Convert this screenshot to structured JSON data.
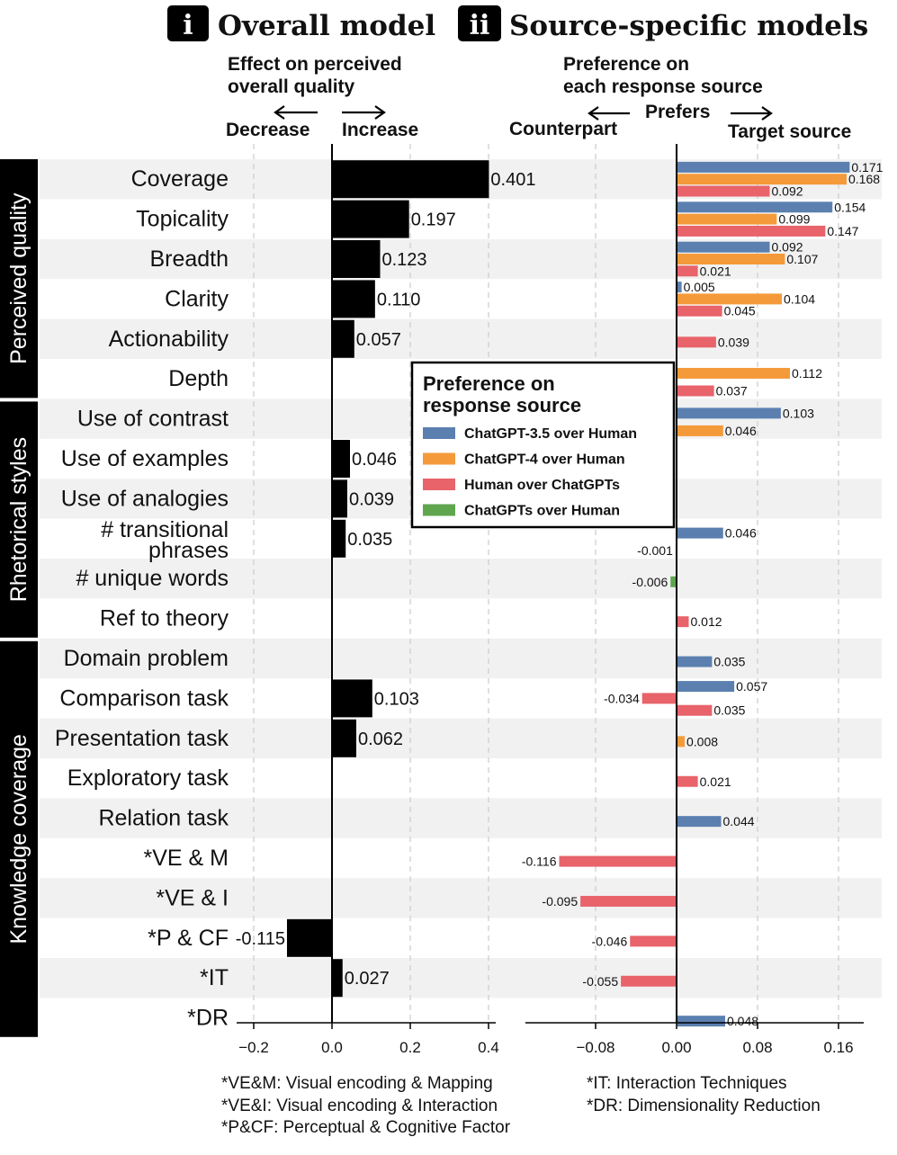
{
  "header": {
    "badge_i": "i",
    "title_i": "Overall model",
    "badge_ii": "ii",
    "title_ii": "Source-specific models",
    "left_sub_1": "Effect on perceived",
    "left_sub_2": "overall quality",
    "left_decrease": "Decrease",
    "left_increase": "Increase",
    "right_sub_1": "Preference on",
    "right_sub_2": "each response source",
    "right_prefers": "Prefers",
    "right_counterpart": "Counterpart",
    "right_target": "Target source"
  },
  "groups": [
    {
      "label": "Perceived quality",
      "start": 0,
      "end": 5
    },
    {
      "label": "Rhetorical styles",
      "start": 6,
      "end": 11
    },
    {
      "label": "Knowledge coverage",
      "start": 12,
      "end": 21
    }
  ],
  "categories": [
    {
      "lines": [
        "Coverage"
      ]
    },
    {
      "lines": [
        "Topicality"
      ]
    },
    {
      "lines": [
        "Breadth"
      ]
    },
    {
      "lines": [
        "Clarity"
      ]
    },
    {
      "lines": [
        "Actionability"
      ]
    },
    {
      "lines": [
        "Depth"
      ]
    },
    {
      "lines": [
        "Use of contrast"
      ]
    },
    {
      "lines": [
        "Use of examples"
      ]
    },
    {
      "lines": [
        "Use of analogies"
      ]
    },
    {
      "lines": [
        "# transitional",
        "phrases"
      ]
    },
    {
      "lines": [
        "# unique words"
      ]
    },
    {
      "lines": [
        "Ref to theory"
      ]
    },
    {
      "lines": [
        "Domain problem"
      ]
    },
    {
      "lines": [
        "Comparison task"
      ]
    },
    {
      "lines": [
        "Presentation task"
      ]
    },
    {
      "lines": [
        "Exploratory task"
      ]
    },
    {
      "lines": [
        "Relation task"
      ]
    },
    {
      "lines": [
        "*VE & M"
      ]
    },
    {
      "lines": [
        "*VE & I"
      ]
    },
    {
      "lines": [
        "*P & CF"
      ]
    },
    {
      "lines": [
        "*IT"
      ]
    },
    {
      "lines": [
        "*DR"
      ]
    }
  ],
  "chart_data": [
    {
      "type": "bar",
      "orientation": "horizontal",
      "title": "Overall model",
      "xlabel": "Effect on perceived overall quality",
      "xlim": [
        -0.23,
        0.42
      ],
      "xticks": [
        "−0.2",
        "0.0",
        "0.2",
        "0.4"
      ],
      "xtick_values": [
        -0.2,
        0.0,
        0.2,
        0.4
      ],
      "grid": true,
      "categories": [
        "Coverage",
        "Topicality",
        "Breadth",
        "Clarity",
        "Actionability",
        "Depth",
        "Use of contrast",
        "Use of examples",
        "Use of analogies",
        "# transitional phrases",
        "# unique words",
        "Ref to theory",
        "Domain problem",
        "Comparison task",
        "Presentation task",
        "Exploratory task",
        "Relation task",
        "*VE & M",
        "*VE & I",
        "*P & CF",
        "*IT",
        "*DR"
      ],
      "values": [
        0.401,
        0.197,
        0.123,
        0.11,
        0.057,
        null,
        null,
        0.046,
        0.039,
        0.035,
        null,
        null,
        null,
        0.103,
        0.062,
        null,
        null,
        null,
        null,
        -0.115,
        0.027,
        null
      ],
      "labels": [
        "0.401",
        "0.197",
        "0.123",
        "0.110",
        "0.057",
        "",
        "",
        "0.046",
        "0.039",
        "0.035",
        "",
        "",
        "",
        "0.103",
        "0.062",
        "",
        "",
        "",
        "",
        "-0.115",
        "0.027",
        ""
      ],
      "color": "#000000"
    },
    {
      "type": "bar",
      "orientation": "horizontal",
      "title": "Source-specific models",
      "xlabel": "Preference on each response source",
      "xlim": [
        -0.147,
        0.185
      ],
      "xticks": [
        "−0.08",
        "0.00",
        "0.08",
        "0.16"
      ],
      "xtick_values": [
        -0.08,
        0.0,
        0.08,
        0.16
      ],
      "grid": true,
      "legend": {
        "title": "Preference on response source",
        "placement": "center"
      },
      "series": [
        {
          "name": "ChatGPT-3.5 over Human",
          "color": "#5b80b0"
        },
        {
          "name": "ChatGPT-4 over Human",
          "color": "#f59a3a"
        },
        {
          "name": "Human over ChatGPTs",
          "color": "#e8636a"
        },
        {
          "name": "ChatGPTs over Human",
          "color": "#5fa64e"
        }
      ],
      "bars": [
        {
          "cat": 0,
          "s": 0,
          "v": 0.171,
          "label": "0.171"
        },
        {
          "cat": 0,
          "s": 1,
          "v": 0.168,
          "label": "0.168"
        },
        {
          "cat": 0,
          "s": 2,
          "v": 0.092,
          "label": "0.092"
        },
        {
          "cat": 1,
          "s": 0,
          "v": 0.154,
          "label": "0.154"
        },
        {
          "cat": 1,
          "s": 1,
          "v": 0.099,
          "label": "0.099"
        },
        {
          "cat": 1,
          "s": 2,
          "v": 0.147,
          "label": "0.147"
        },
        {
          "cat": 2,
          "s": 0,
          "v": 0.092,
          "label": "0.092"
        },
        {
          "cat": 2,
          "s": 1,
          "v": 0.107,
          "label": "0.107"
        },
        {
          "cat": 2,
          "s": 2,
          "v": 0.021,
          "label": "0.021"
        },
        {
          "cat": 3,
          "s": 0,
          "v": 0.005,
          "label": "0.005"
        },
        {
          "cat": 3,
          "s": 1,
          "v": 0.104,
          "label": "0.104"
        },
        {
          "cat": 3,
          "s": 2,
          "v": 0.045,
          "label": "0.045"
        },
        {
          "cat": 4,
          "s": 2,
          "v": 0.039,
          "label": "0.039"
        },
        {
          "cat": 5,
          "s": 1,
          "v": 0.112,
          "label": "0.112"
        },
        {
          "cat": 5,
          "s": 2,
          "v": 0.037,
          "label": "0.037"
        },
        {
          "cat": 6,
          "s": 0,
          "v": 0.103,
          "label": "0.103"
        },
        {
          "cat": 6,
          "s": 1,
          "v": 0.046,
          "label": "0.046"
        },
        {
          "cat": 9,
          "s": 0,
          "v": 0.046,
          "label": "0.046"
        },
        {
          "cat": 9,
          "s": 2,
          "v": -0.001,
          "label": "-0.001"
        },
        {
          "cat": 10,
          "s": 3,
          "v": -0.006,
          "label": "-0.006"
        },
        {
          "cat": 11,
          "s": 2,
          "v": 0.012,
          "label": "0.012"
        },
        {
          "cat": 12,
          "s": 0,
          "v": 0.035,
          "label": "0.035"
        },
        {
          "cat": 13,
          "s": 0,
          "v": 0.057,
          "label": "0.057"
        },
        {
          "cat": 13,
          "s": 2,
          "v": -0.034,
          "label": "-0.034"
        },
        {
          "cat": 13,
          "s": 2,
          "v": 0.035,
          "label": "0.035"
        },
        {
          "cat": 14,
          "s": 1,
          "v": 0.008,
          "label": "0.008"
        },
        {
          "cat": 15,
          "s": 2,
          "v": 0.021,
          "label": "0.021"
        },
        {
          "cat": 16,
          "s": 0,
          "v": 0.044,
          "label": "0.044"
        },
        {
          "cat": 17,
          "s": 2,
          "v": -0.116,
          "label": "-0.116"
        },
        {
          "cat": 18,
          "s": 2,
          "v": -0.095,
          "label": "-0.095"
        },
        {
          "cat": 19,
          "s": 2,
          "v": -0.046,
          "label": "-0.046"
        },
        {
          "cat": 20,
          "s": 2,
          "v": -0.055,
          "label": "-0.055"
        },
        {
          "cat": 21,
          "s": 0,
          "v": 0.048,
          "label": "0.048"
        }
      ]
    }
  ],
  "footnotes": {
    "vem": "*VE&M: Visual encoding & Mapping",
    "vei": "*VE&I:   Visual encoding & Interaction",
    "pcf": "*P&CF:  Perceptual & Cognitive Factor",
    "it": "*IT:    Interaction Techniques",
    "dr": "*DR: Dimensionality Reduction"
  }
}
